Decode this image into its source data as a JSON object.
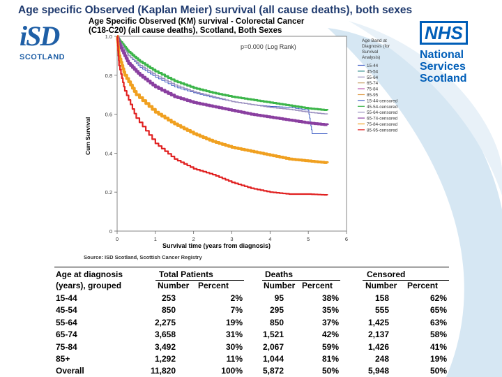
{
  "page": {
    "title": "Age specific Observed (Kaplan Meier) survival (all cause deaths), both sexes"
  },
  "logos": {
    "isd_text": "iSD",
    "isd_sub": "SCOTLAND",
    "nhs_badge": "NHS",
    "nhs_line1": "National",
    "nhs_line2": "Services",
    "nhs_line3": "Scotland"
  },
  "colors": {
    "title": "#1f3a6e",
    "brand_blue": "#005eb8",
    "swoosh": "#cfe3f1"
  },
  "chart_data": {
    "type": "line",
    "title_line1": "Age Specific Observed (KM) survival - Colorectal Cancer",
    "title_line2": "(C18-C20) (all cause deaths), Scotland, Both Sexes",
    "annotation": "p=0.000 (Log Rank)",
    "xlabel": "Survival time (years from diagnosis)",
    "ylabel": "Cum Survival",
    "xlim": [
      0,
      6
    ],
    "ylim": [
      0,
      1.0
    ],
    "x_ticks": [
      "0",
      "1",
      "2",
      "3",
      "4",
      "5",
      "6"
    ],
    "y_ticks": [
      "0",
      "0.2",
      "0.4",
      "0.6",
      "0.8",
      "1.0"
    ],
    "source": "Source: ISD Scotland, Scottish Cancer Registry",
    "legend_title": [
      "Age Band at",
      "Diagnosis (for",
      "Survival",
      "Analysis)"
    ],
    "legend_placement": "right",
    "legend": [
      "15-44",
      "45-54",
      "55-64",
      "65-74",
      "75-84",
      "85-95",
      "15-44-censored",
      "45-54-censored",
      "55-64-censored",
      "65-74-censored",
      "75-84-censored",
      "85-95-censored"
    ],
    "legend_colors": [
      "#3b5bc4",
      "#2e8b8b",
      "#9a8fbf",
      "#c9a36b",
      "#b84fa8",
      "#e0a050",
      "#3b5bc4",
      "#3cb54a",
      "#9a8fbf",
      "#8a3fa0",
      "#f0a020",
      "#e02020"
    ],
    "series": [
      {
        "name": "15-44",
        "color": "#3b5bc4",
        "x": [
          0,
          0.1,
          0.3,
          0.6,
          1,
          1.5,
          2,
          2.5,
          3,
          3.5,
          4,
          4.5,
          5,
          5.1,
          5.5
        ],
        "y": [
          1.0,
          0.96,
          0.9,
          0.84,
          0.79,
          0.74,
          0.71,
          0.685,
          0.665,
          0.65,
          0.64,
          0.635,
          0.62,
          0.5,
          0.5
        ]
      },
      {
        "name": "45-54",
        "color": "#3cb54a",
        "x": [
          0,
          0.1,
          0.3,
          0.6,
          1,
          1.5,
          2,
          2.5,
          3,
          3.5,
          4,
          4.5,
          5,
          5.5
        ],
        "y": [
          1.0,
          0.97,
          0.92,
          0.87,
          0.82,
          0.77,
          0.735,
          0.71,
          0.69,
          0.675,
          0.66,
          0.645,
          0.63,
          0.62
        ]
      },
      {
        "name": "55-64",
        "color": "#9a8fbf",
        "x": [
          0,
          0.1,
          0.3,
          0.6,
          1,
          1.5,
          2,
          2.5,
          3,
          3.5,
          4,
          4.5,
          5,
          5.5
        ],
        "y": [
          1.0,
          0.96,
          0.9,
          0.85,
          0.8,
          0.75,
          0.715,
          0.69,
          0.665,
          0.65,
          0.635,
          0.625,
          0.61,
          0.6
        ]
      },
      {
        "name": "65-74",
        "color": "#8a3fa0",
        "x": [
          0,
          0.1,
          0.3,
          0.6,
          1,
          1.5,
          2,
          2.5,
          3,
          3.5,
          4,
          4.5,
          5,
          5.5
        ],
        "y": [
          1.0,
          0.94,
          0.86,
          0.8,
          0.74,
          0.69,
          0.66,
          0.64,
          0.62,
          0.6,
          0.585,
          0.57,
          0.555,
          0.545
        ]
      },
      {
        "name": "75-84",
        "color": "#f0a020",
        "x": [
          0,
          0.05,
          0.2,
          0.5,
          1,
          1.5,
          2,
          2.5,
          3,
          3.5,
          4,
          4.5,
          5,
          5.5
        ],
        "y": [
          1.0,
          0.9,
          0.8,
          0.7,
          0.61,
          0.55,
          0.5,
          0.46,
          0.43,
          0.41,
          0.39,
          0.37,
          0.36,
          0.35
        ]
      },
      {
        "name": "85-95",
        "color": "#e02020",
        "x": [
          0,
          0.05,
          0.2,
          0.5,
          1,
          1.5,
          2,
          2.5,
          3,
          3.5,
          4,
          4.5,
          5,
          5.5
        ],
        "y": [
          1.0,
          0.85,
          0.72,
          0.58,
          0.45,
          0.37,
          0.32,
          0.29,
          0.25,
          0.22,
          0.2,
          0.19,
          0.19,
          0.185
        ]
      }
    ]
  },
  "table": {
    "header": {
      "age_line1": "Age at diagnosis",
      "age_line2": "(years), grouped",
      "total": "Total Patients",
      "deaths": "Deaths",
      "censored": "Censored",
      "number": "Number",
      "percent": "Percent"
    },
    "rows": [
      {
        "age": "15-44",
        "tp_n": "253",
        "tp_p": "2%",
        "d_n": "95",
        "d_p": "38%",
        "c_n": "158",
        "c_p": "62%"
      },
      {
        "age": "45-54",
        "tp_n": "850",
        "tp_p": "7%",
        "d_n": "295",
        "d_p": "35%",
        "c_n": "555",
        "c_p": "65%"
      },
      {
        "age": "55-64",
        "tp_n": "2,275",
        "tp_p": "19%",
        "d_n": "850",
        "d_p": "37%",
        "c_n": "1,425",
        "c_p": "63%"
      },
      {
        "age": "65-74",
        "tp_n": "3,658",
        "tp_p": "31%",
        "d_n": "1,521",
        "d_p": "42%",
        "c_n": "2,137",
        "c_p": "58%"
      },
      {
        "age": "75-84",
        "tp_n": "3,492",
        "tp_p": "30%",
        "d_n": "2,067",
        "d_p": "59%",
        "c_n": "1,426",
        "c_p": "41%"
      },
      {
        "age": "85+",
        "tp_n": "1,292",
        "tp_p": "11%",
        "d_n": "1,044",
        "d_p": "81%",
        "c_n": "248",
        "c_p": "19%"
      },
      {
        "age": "Overall",
        "tp_n": "11,820",
        "tp_p": "100%",
        "d_n": "5,872",
        "d_p": "50%",
        "c_n": "5,948",
        "c_p": "50%"
      }
    ]
  }
}
